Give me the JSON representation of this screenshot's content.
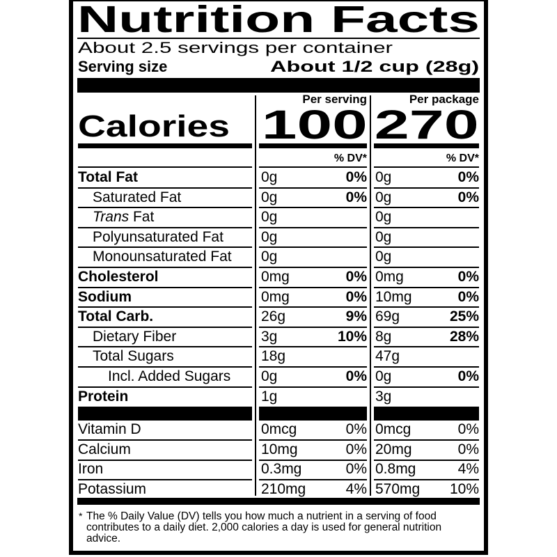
{
  "title": "Nutrition Facts",
  "servings_per_container": "About 2.5 servings per container",
  "serving_size": {
    "label": "Serving size",
    "value": "About 1/2 cup (28g)"
  },
  "calories": {
    "label": "Calories",
    "per_serving_header": "Per serving",
    "per_package_header": "Per package",
    "per_serving": "100",
    "per_package": "270"
  },
  "dv_header": "% DV*",
  "nutrients": [
    {
      "name": "Total Fat",
      "bold": true,
      "level": 0,
      "serving_amount": "0g",
      "serving_dv": "0%",
      "package_amount": "0g",
      "package_dv": "0%"
    },
    {
      "name": "Saturated Fat",
      "bold": false,
      "level": 1,
      "serving_amount": "0g",
      "serving_dv": "0%",
      "package_amount": "0g",
      "package_dv": "0%"
    },
    {
      "name": "Trans Fat",
      "bold": false,
      "level": 1,
      "italic_prefix": "Trans",
      "name_rest": " Fat",
      "serving_amount": "0g",
      "serving_dv": "",
      "package_amount": "0g",
      "package_dv": ""
    },
    {
      "name": "Polyunsaturated Fat",
      "bold": false,
      "level": 1,
      "serving_amount": "0g",
      "serving_dv": "",
      "package_amount": "0g",
      "package_dv": ""
    },
    {
      "name": "Monounsaturated Fat",
      "bold": false,
      "level": 1,
      "serving_amount": "0g",
      "serving_dv": "",
      "package_amount": "0g",
      "package_dv": ""
    },
    {
      "name": "Cholesterol",
      "bold": true,
      "level": 0,
      "serving_amount": "0mg",
      "serving_dv": "0%",
      "package_amount": "0mg",
      "package_dv": "0%"
    },
    {
      "name": "Sodium",
      "bold": true,
      "level": 0,
      "serving_amount": "0mg",
      "serving_dv": "0%",
      "package_amount": "10mg",
      "package_dv": "0%"
    },
    {
      "name": "Total Carb.",
      "bold": true,
      "level": 0,
      "serving_amount": "26g",
      "serving_dv": "9%",
      "package_amount": "69g",
      "package_dv": "25%"
    },
    {
      "name": "Dietary Fiber",
      "bold": false,
      "level": 1,
      "serving_amount": "3g",
      "serving_dv": "10%",
      "package_amount": "8g",
      "package_dv": "28%"
    },
    {
      "name": "Total Sugars",
      "bold": false,
      "level": 1,
      "serving_amount": "18g",
      "serving_dv": "",
      "package_amount": "47g",
      "package_dv": ""
    },
    {
      "name": "Incl. Added Sugars",
      "bold": false,
      "level": 2,
      "serving_amount": "0g",
      "serving_dv": "0%",
      "package_amount": "0g",
      "package_dv": "0%"
    },
    {
      "name": "Protein",
      "bold": true,
      "level": 0,
      "serving_amount": "1g",
      "serving_dv": "",
      "package_amount": "3g",
      "package_dv": ""
    }
  ],
  "vitamins": [
    {
      "name": "Vitamin D",
      "serving_amount": "0mcg",
      "serving_dv": "0%",
      "package_amount": "0mcg",
      "package_dv": "0%"
    },
    {
      "name": "Calcium",
      "serving_amount": "10mg",
      "serving_dv": "0%",
      "package_amount": "20mg",
      "package_dv": "0%"
    },
    {
      "name": "Iron",
      "serving_amount": "0.3mg",
      "serving_dv": "0%",
      "package_amount": "0.8mg",
      "package_dv": "4%"
    },
    {
      "name": "Potassium",
      "serving_amount": "210mg",
      "serving_dv": "4%",
      "package_amount": "570mg",
      "package_dv": "10%"
    }
  ],
  "footnote_marker": "*",
  "footnote": "The % Daily Value (DV) tells you how much a nutrient in a serving of food contributes to a daily diet. 2,000 calories a day is used for general nutrition advice."
}
